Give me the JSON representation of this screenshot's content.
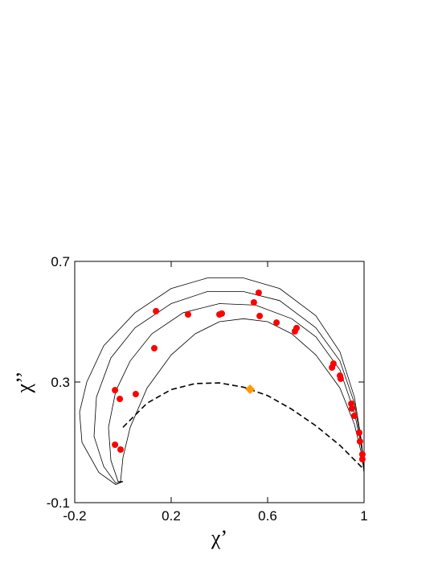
{
  "chart_data": {
    "type": "line",
    "x_label": "χ’",
    "y_label": "χ’’",
    "xlim": [
      -0.2,
      1.0
    ],
    "xticks": [
      -0.2,
      0.2,
      0.6,
      1.0
    ],
    "ylim": [
      -0.1,
      0.7
    ],
    "yticks": [
      -0.1,
      0.3,
      0.7
    ],
    "grid": false,
    "series": [
      {
        "type": "line",
        "color": "#000000",
        "dash": false,
        "x": [
          0.0,
          -0.03,
          -0.1,
          -0.17,
          -0.18,
          -0.15,
          -0.08,
          0.05,
          0.2,
          0.35,
          0.5,
          0.65,
          0.8,
          0.9,
          0.96,
          0.99,
          1.0
        ],
        "values": [
          -0.03,
          -0.04,
          0.0,
          0.1,
          0.2,
          0.3,
          0.42,
          0.53,
          0.61,
          0.645,
          0.645,
          0.61,
          0.52,
          0.4,
          0.25,
          0.1,
          0.0
        ]
      },
      {
        "type": "line",
        "color": "#000000",
        "dash": false,
        "x": [
          0.0,
          -0.03,
          -0.08,
          -0.12,
          -0.11,
          -0.05,
          0.05,
          0.2,
          0.35,
          0.5,
          0.65,
          0.8,
          0.9,
          0.96,
          0.99,
          1.0
        ],
        "values": [
          -0.03,
          -0.035,
          0.02,
          0.12,
          0.25,
          0.38,
          0.48,
          0.56,
          0.6,
          0.6,
          0.57,
          0.48,
          0.37,
          0.23,
          0.09,
          0.0
        ]
      },
      {
        "type": "line",
        "color": "#000000",
        "dash": false,
        "x": [
          0.0,
          -0.02,
          -0.05,
          -0.06,
          -0.03,
          0.03,
          0.12,
          0.25,
          0.4,
          0.55,
          0.7,
          0.8,
          0.9,
          0.96,
          0.99,
          1.0
        ],
        "values": [
          -0.03,
          -0.03,
          0.04,
          0.15,
          0.27,
          0.37,
          0.46,
          0.53,
          0.56,
          0.555,
          0.51,
          0.45,
          0.34,
          0.2,
          0.08,
          0.0
        ]
      },
      {
        "type": "line",
        "color": "#000000",
        "dash": false,
        "x": [
          0.0,
          -0.01,
          0.0,
          0.03,
          0.1,
          0.2,
          0.3,
          0.4,
          0.5,
          0.6,
          0.7,
          0.8,
          0.9,
          0.96,
          0.99,
          1.0
        ],
        "values": [
          -0.03,
          -0.03,
          0.05,
          0.15,
          0.28,
          0.39,
          0.46,
          0.5,
          0.51,
          0.5,
          0.46,
          0.39,
          0.28,
          0.16,
          0.06,
          0.0
        ]
      },
      {
        "type": "line",
        "color": "#000000",
        "dash": true,
        "x": [
          0.0,
          0.1,
          0.2,
          0.3,
          0.4,
          0.5,
          0.6,
          0.7,
          0.8,
          0.9,
          1.0
        ],
        "values": [
          0.15,
          0.23,
          0.275,
          0.295,
          0.297,
          0.283,
          0.255,
          0.21,
          0.155,
          0.09,
          0.01
        ]
      },
      {
        "type": "scatter",
        "color": "#ff0000",
        "marker": "circle",
        "x": [
          0.563,
          0.543,
          0.137,
          0.27,
          0.4,
          0.41,
          0.567,
          0.637,
          0.72,
          0.713,
          0.13,
          0.873,
          0.867,
          0.9,
          0.903,
          -0.033,
          0.053,
          -0.013,
          0.947,
          0.95,
          0.96,
          0.98,
          0.983,
          -0.033,
          -0.01,
          0.993,
          0.993
        ],
        "values": [
          0.596,
          0.564,
          0.535,
          0.524,
          0.524,
          0.527,
          0.519,
          0.497,
          0.479,
          0.468,
          0.412,
          0.361,
          0.348,
          0.321,
          0.311,
          0.273,
          0.26,
          0.244,
          0.228,
          0.212,
          0.188,
          0.132,
          0.103,
          0.092,
          0.076,
          0.06,
          0.044
        ]
      },
      {
        "type": "scatter",
        "color": "#ff9900",
        "marker": "diamond",
        "x": [
          0.527
        ],
        "values": [
          0.276
        ]
      }
    ]
  }
}
